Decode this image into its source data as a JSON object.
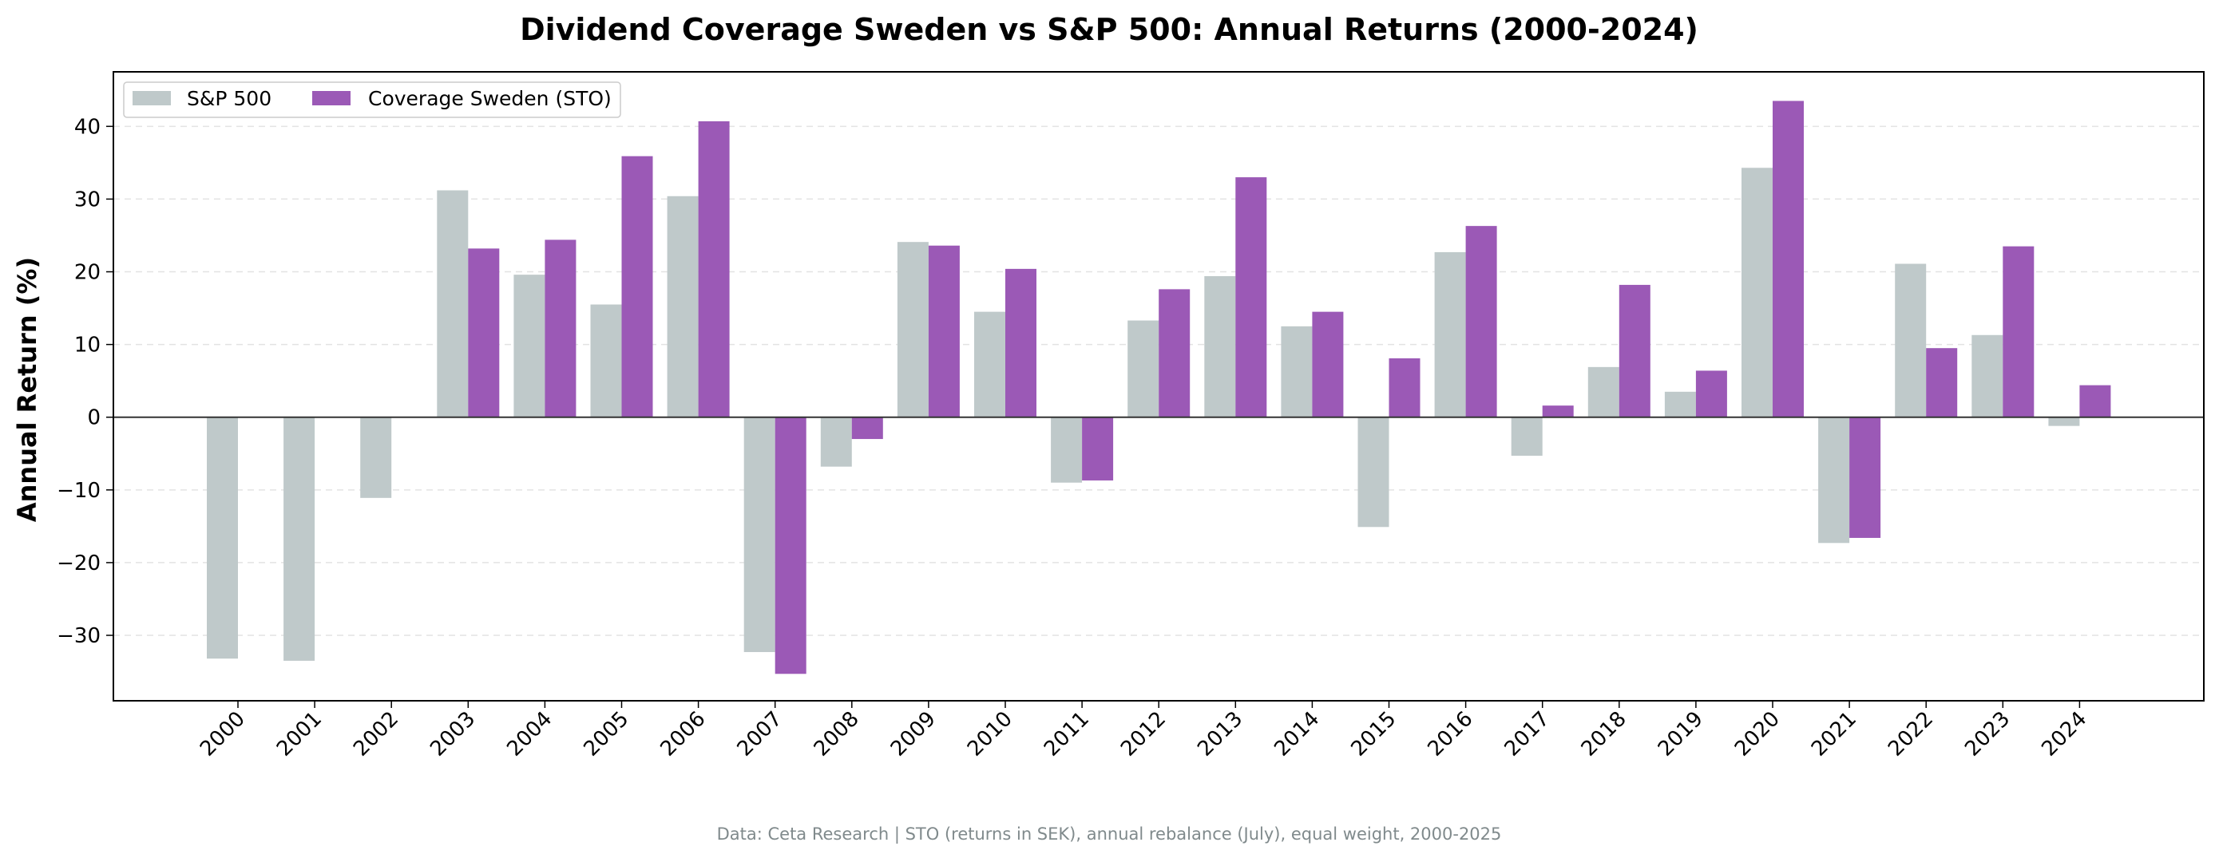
{
  "chart_data": {
    "type": "bar",
    "title": "Dividend Coverage Sweden vs S&P 500: Annual Returns (2000-2024)",
    "xlabel": "",
    "ylabel": "Annual Return (%)",
    "ylim": [
      -39,
      47.5
    ],
    "yticks": [
      -30,
      -20,
      -10,
      0,
      10,
      20,
      30,
      40
    ],
    "ytick_labels": [
      "−30",
      "−20",
      "−10",
      "0",
      "10",
      "20",
      "30",
      "40"
    ],
    "grid": "horizontal dashed",
    "legend_position": "top-left",
    "categories": [
      "2000",
      "2001",
      "2002",
      "2003",
      "2004",
      "2005",
      "2006",
      "2007",
      "2008",
      "2009",
      "2010",
      "2011",
      "2012",
      "2013",
      "2014",
      "2015",
      "2016",
      "2017",
      "2018",
      "2019",
      "2020",
      "2021",
      "2022",
      "2023",
      "2024"
    ],
    "series": [
      {
        "name": "S&P 500",
        "color": "#bfc9ca",
        "values": [
          -33.2,
          -33.5,
          -11.1,
          31.2,
          19.6,
          15.5,
          30.4,
          -32.3,
          -6.8,
          24.1,
          14.5,
          -9.0,
          13.3,
          19.4,
          12.5,
          -15.1,
          22.7,
          -5.3,
          6.9,
          3.5,
          34.3,
          -17.3,
          21.1,
          11.3,
          -1.2
        ]
      },
      {
        "name": "Coverage Sweden (STO)",
        "color": "#9b59b6",
        "values": [
          null,
          null,
          null,
          23.2,
          24.4,
          35.9,
          40.7,
          -35.3,
          -3.0,
          23.6,
          20.4,
          -8.7,
          17.6,
          33.0,
          14.5,
          8.1,
          26.3,
          1.6,
          18.2,
          6.4,
          43.5,
          -16.6,
          9.5,
          23.5,
          4.4
        ]
      }
    ],
    "footnote": "Data: Ceta Research | STO (returns in SEK), annual rebalance (July), equal weight, 2000-2025"
  }
}
